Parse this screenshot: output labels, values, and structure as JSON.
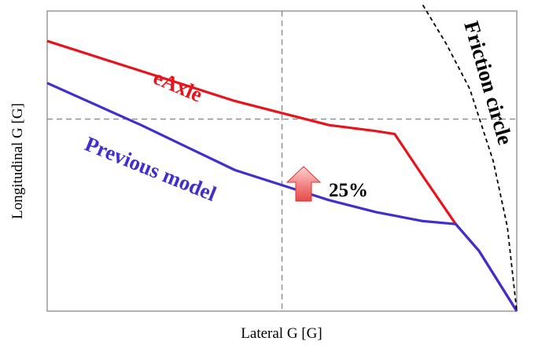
{
  "chart_data": {
    "type": "line",
    "xlabel": "Lateral G [G]",
    "ylabel": "Longitudinal G [G]",
    "xlim": [
      0,
      1
    ],
    "ylim": [
      0,
      1
    ],
    "grid": false,
    "reference_lines": {
      "x": 0.5,
      "y": 0.64
    },
    "series": [
      {
        "name": "eAxle",
        "color": "#e8141c",
        "points": [
          [
            0.0,
            0.9
          ],
          [
            0.2,
            0.8
          ],
          [
            0.4,
            0.7
          ],
          [
            0.5,
            0.66
          ],
          [
            0.6,
            0.62
          ],
          [
            0.7,
            0.6
          ],
          [
            0.74,
            0.59
          ],
          [
            0.8,
            0.45
          ],
          [
            0.87,
            0.29
          ],
          [
            0.92,
            0.2
          ],
          [
            0.96,
            0.1
          ],
          [
            1.0,
            0.0
          ]
        ]
      },
      {
        "name": "Previous model",
        "color": "#3f2fcf",
        "points": [
          [
            0.0,
            0.76
          ],
          [
            0.2,
            0.62
          ],
          [
            0.4,
            0.47
          ],
          [
            0.5,
            0.42
          ],
          [
            0.6,
            0.37
          ],
          [
            0.7,
            0.33
          ],
          [
            0.8,
            0.3
          ],
          [
            0.87,
            0.29
          ],
          [
            0.92,
            0.2
          ],
          [
            0.96,
            0.1
          ],
          [
            1.0,
            0.0
          ]
        ]
      },
      {
        "name": "Friction circle",
        "color": "#000000",
        "dashed": true,
        "points": [
          [
            0.8,
            1.02
          ],
          [
            0.85,
            0.89
          ],
          [
            0.9,
            0.74
          ],
          [
            0.95,
            0.5
          ],
          [
            0.98,
            0.28
          ],
          [
            1.0,
            0.0
          ]
        ]
      }
    ],
    "annotations": [
      {
        "text": "25%",
        "arrow": "up",
        "arrow_color": "#f07b7b"
      }
    ]
  }
}
